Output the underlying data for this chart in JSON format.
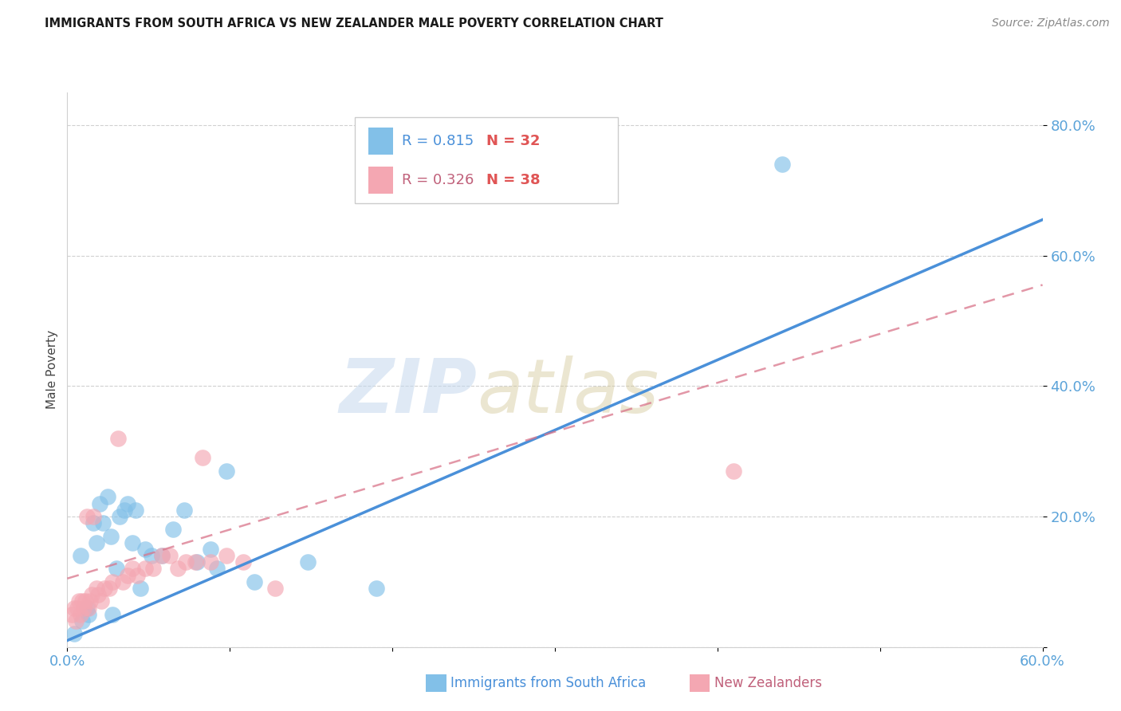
{
  "title": "IMMIGRANTS FROM SOUTH AFRICA VS NEW ZEALANDER MALE POVERTY CORRELATION CHART",
  "source": "Source: ZipAtlas.com",
  "xlabel_blue": "Immigrants from South Africa",
  "xlabel_pink": "New Zealanders",
  "ylabel": "Male Poverty",
  "xlim": [
    0.0,
    0.6
  ],
  "ylim": [
    0.0,
    0.85
  ],
  "xticks": [
    0.0,
    0.1,
    0.2,
    0.3,
    0.4,
    0.5,
    0.6
  ],
  "xtick_labels": [
    "0.0%",
    "",
    "",
    "",
    "",
    "",
    "60.0%"
  ],
  "yticks": [
    0.0,
    0.2,
    0.4,
    0.6,
    0.8
  ],
  "ytick_labels": [
    "",
    "20.0%",
    "40.0%",
    "60.0%",
    "80.0%"
  ],
  "legend_R_blue": "0.815",
  "legend_N_blue": "32",
  "legend_R_pink": "0.326",
  "legend_N_pink": "38",
  "blue_color": "#82c0e8",
  "pink_color": "#f4a7b2",
  "blue_line_color": "#4a90d9",
  "pink_line_color": "#d9748a",
  "watermark_zip": "ZIP",
  "watermark_atlas": "atlas",
  "blue_scatter_x": [
    0.004,
    0.008,
    0.009,
    0.012,
    0.013,
    0.016,
    0.018,
    0.02,
    0.022,
    0.025,
    0.027,
    0.028,
    0.03,
    0.032,
    0.035,
    0.037,
    0.04,
    0.042,
    0.045,
    0.048,
    0.052,
    0.058,
    0.065,
    0.072,
    0.08,
    0.088,
    0.092,
    0.098,
    0.115,
    0.148,
    0.19,
    0.44
  ],
  "blue_scatter_y": [
    0.02,
    0.14,
    0.04,
    0.06,
    0.05,
    0.19,
    0.16,
    0.22,
    0.19,
    0.23,
    0.17,
    0.05,
    0.12,
    0.2,
    0.21,
    0.22,
    0.16,
    0.21,
    0.09,
    0.15,
    0.14,
    0.14,
    0.18,
    0.21,
    0.13,
    0.15,
    0.12,
    0.27,
    0.1,
    0.13,
    0.09,
    0.74
  ],
  "pink_scatter_x": [
    0.003,
    0.004,
    0.005,
    0.006,
    0.007,
    0.008,
    0.009,
    0.01,
    0.011,
    0.012,
    0.013,
    0.014,
    0.015,
    0.016,
    0.018,
    0.019,
    0.021,
    0.023,
    0.026,
    0.028,
    0.031,
    0.034,
    0.037,
    0.04,
    0.043,
    0.048,
    0.053,
    0.058,
    0.063,
    0.068,
    0.073,
    0.079,
    0.083,
    0.088,
    0.098,
    0.108,
    0.128,
    0.41
  ],
  "pink_scatter_y": [
    0.05,
    0.06,
    0.04,
    0.06,
    0.07,
    0.05,
    0.07,
    0.06,
    0.07,
    0.2,
    0.06,
    0.07,
    0.08,
    0.2,
    0.09,
    0.08,
    0.07,
    0.09,
    0.09,
    0.1,
    0.32,
    0.1,
    0.11,
    0.12,
    0.11,
    0.12,
    0.12,
    0.14,
    0.14,
    0.12,
    0.13,
    0.13,
    0.29,
    0.13,
    0.14,
    0.13,
    0.09,
    0.27
  ],
  "blue_trend_x": [
    0.0,
    0.6
  ],
  "blue_trend_y": [
    0.01,
    0.655
  ],
  "pink_trend_x": [
    0.0,
    0.6
  ],
  "pink_trend_y": [
    0.105,
    0.555
  ],
  "grid_color": "#d0d0d0",
  "background_color": "#ffffff",
  "tick_color": "#5ba3d9",
  "legend_text_color_blue": "#4a90d9",
  "legend_text_color_pink": "#c0607a",
  "legend_N_color": "#e05555"
}
